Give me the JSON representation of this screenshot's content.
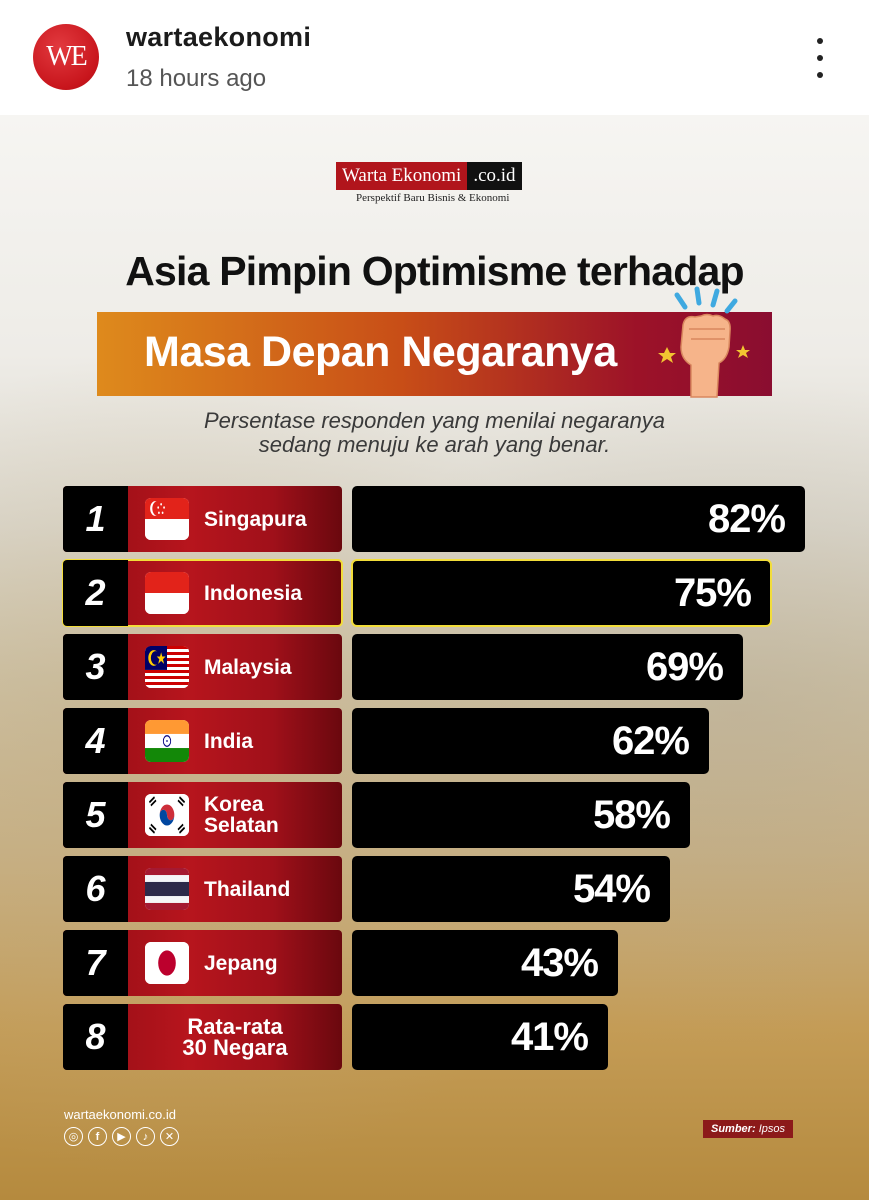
{
  "post": {
    "avatar_text": "WE",
    "username": "wartaekonomi",
    "timestamp": "18 hours ago"
  },
  "brand": {
    "name": "Warta Ekonomi",
    "tld": ".co.id",
    "tagline": "Perspektif Baru Bisnis & Ekonomi"
  },
  "chart_data": {
    "type": "bar",
    "title": "Asia Pimpin Optimisme terhadap",
    "subtitle_banner": "Masa Depan Negaranya",
    "description": [
      "Persentase responden yang menilai negaranya",
      "sedang menuju ke arah yang benar."
    ],
    "categories": [
      "Singapura",
      "Indonesia",
      "Malaysia",
      "India",
      "Korea Selatan",
      "Thailand",
      "Jepang",
      "Rata-rata 30 Negara"
    ],
    "ranks": [
      "1",
      "2",
      "3",
      "4",
      "5",
      "6",
      "7",
      "8"
    ],
    "values": [
      82,
      75,
      69,
      62,
      58,
      54,
      43,
      41
    ],
    "value_labels": [
      "82%",
      "75%",
      "69%",
      "62%",
      "58%",
      "54%",
      "43%",
      "41%"
    ],
    "label_lines": [
      [
        "Singapura"
      ],
      [
        "Indonesia"
      ],
      [
        "Malaysia"
      ],
      [
        "India"
      ],
      [
        "Korea",
        "Selatan"
      ],
      [
        "Thailand"
      ],
      [
        "Jepang"
      ],
      [
        "Rata-rata",
        "30 Negara"
      ]
    ],
    "flags": [
      "singapore",
      "indonesia",
      "malaysia",
      "india",
      "south-korea",
      "thailand",
      "japan",
      ""
    ],
    "highlighted_index": 1,
    "xlim": [
      0,
      82
    ],
    "grid": false,
    "legend": "none"
  },
  "footer": {
    "site": "wartaekonomi.co.id",
    "socials": [
      "instagram-icon",
      "facebook-icon",
      "youtube-icon",
      "tiktok-icon",
      "x-icon"
    ],
    "source_label": "Sumber:",
    "source_value": "Ipsos"
  },
  "colors": {
    "brand_red": "#b1151c",
    "bar": "#000000",
    "highlight": "#f2dd3a"
  }
}
